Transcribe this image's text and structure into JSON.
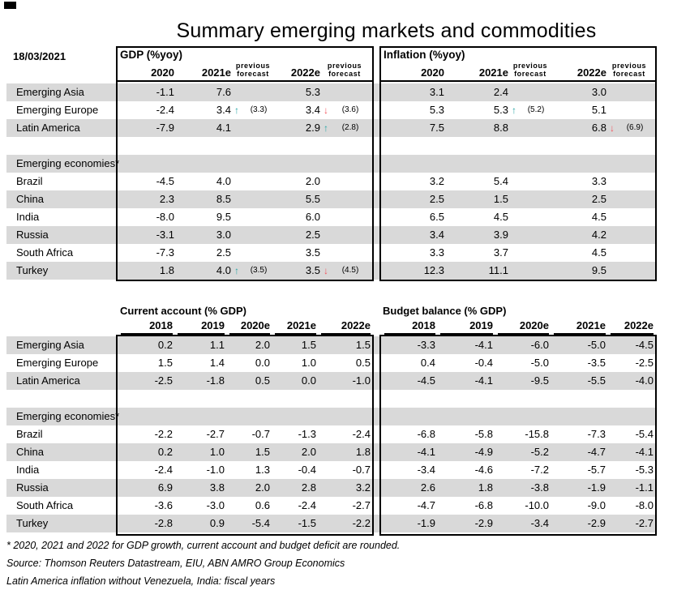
{
  "title": "Summary emerging markets and commodities",
  "date": "18/03/2021",
  "colors": {
    "stripe": "#d9d9d9",
    "arrow_up": "#2aa7a7",
    "arrow_down": "#f2555f",
    "border": "#000000"
  },
  "top": {
    "gdp": {
      "title": "GDP (%yoy)",
      "years": [
        "2020",
        "2021e",
        "2022e"
      ],
      "prev_label": [
        "previous",
        "forecast"
      ]
    },
    "inflation": {
      "title": "Inflation (%yoy)",
      "years": [
        "2020",
        "2021e",
        "2022e"
      ],
      "prev_label": [
        "previous",
        "forecast"
      ]
    },
    "rows": [
      {
        "type": "region",
        "label": "Emerging Asia",
        "gdp": [
          "-1.1",
          "7.6",
          "5.3"
        ],
        "inf": [
          "3.1",
          "2.4",
          "3.0"
        ]
      },
      {
        "type": "region",
        "label": "Emerging Europe",
        "gdp": [
          "-2.4",
          "3.4",
          "3.4"
        ],
        "gdp_up": {
          "1": "↑"
        },
        "gdp_dn": {
          "2": "↓"
        },
        "gdp_prev": {
          "1": "(3.3)",
          "2": "(3.6)"
        },
        "inf": [
          "5.3",
          "5.3",
          "5.1"
        ],
        "inf_up": {
          "1": "↑"
        },
        "inf_prev": {
          "1": "(5.2)"
        }
      },
      {
        "type": "region",
        "label": "Latin America",
        "gdp": [
          "-7.9",
          "4.1",
          "2.9"
        ],
        "gdp_up": {
          "2": "↑"
        },
        "gdp_prev": {
          "2": "(2.8)"
        },
        "inf": [
          "7.5",
          "8.8",
          "6.8"
        ],
        "inf_dn": {
          "2": "↓"
        },
        "inf_prev": {
          "2": "(6.9)"
        }
      },
      {
        "type": "blank"
      },
      {
        "type": "band",
        "label": "Emerging economies*"
      },
      {
        "type": "economy",
        "label": "Brazil",
        "gdp": [
          "-4.5",
          "4.0",
          "2.0"
        ],
        "inf": [
          "3.2",
          "5.4",
          "3.3"
        ]
      },
      {
        "type": "economy",
        "label": "China",
        "gdp": [
          "2.3",
          "8.5",
          "5.5"
        ],
        "inf": [
          "2.5",
          "1.5",
          "2.5"
        ]
      },
      {
        "type": "economy",
        "label": "India",
        "gdp": [
          "-8.0",
          "9.5",
          "6.0"
        ],
        "inf": [
          "6.5",
          "4.5",
          "4.5"
        ]
      },
      {
        "type": "economy",
        "label": "Russia",
        "gdp": [
          "-3.1",
          "3.0",
          "2.5"
        ],
        "inf": [
          "3.4",
          "3.9",
          "4.2"
        ]
      },
      {
        "type": "economy",
        "label": "South Africa",
        "gdp": [
          "-7.3",
          "2.5",
          "3.5"
        ],
        "inf": [
          "3.3",
          "3.7",
          "4.5"
        ]
      },
      {
        "type": "economy",
        "label": "Turkey",
        "gdp": [
          "1.8",
          "4.0",
          "3.5"
        ],
        "gdp_up": {
          "1": "↑"
        },
        "gdp_dn": {
          "2": "↓"
        },
        "gdp_prev": {
          "1": "(3.5)",
          "2": "(4.5)"
        },
        "inf": [
          "12.3",
          "11.1",
          "9.5"
        ]
      }
    ]
  },
  "bottom": {
    "ca": {
      "title": "Current account (% GDP)",
      "years": [
        "2018",
        "2019",
        "2020e",
        "2021e",
        "2022e"
      ]
    },
    "bb": {
      "title": "Budget balance (% GDP)",
      "years": [
        "2018",
        "2019",
        "2020e",
        "2021e",
        "2022e"
      ]
    },
    "rows": [
      {
        "type": "region",
        "label": "Emerging Asia",
        "ca": [
          "0.2",
          "1.1",
          "2.0",
          "1.5",
          "1.5"
        ],
        "bb": [
          "-3.3",
          "-4.1",
          "-6.0",
          "-5.0",
          "-4.5"
        ]
      },
      {
        "type": "region",
        "label": "Emerging Europe",
        "ca": [
          "1.5",
          "1.4",
          "0.0",
          "1.0",
          "0.5"
        ],
        "bb": [
          "0.4",
          "-0.4",
          "-5.0",
          "-3.5",
          "-2.5"
        ]
      },
      {
        "type": "region",
        "label": "Latin America",
        "ca": [
          "-2.5",
          "-1.8",
          "0.5",
          "0.0",
          "-1.0"
        ],
        "bb": [
          "-4.5",
          "-4.1",
          "-9.5",
          "-5.5",
          "-4.0"
        ]
      },
      {
        "type": "blank"
      },
      {
        "type": "band",
        "label": "Emerging economies*"
      },
      {
        "type": "economy",
        "label": "Brazil",
        "ca": [
          "-2.2",
          "-2.7",
          "-0.7",
          "-1.3",
          "-2.4"
        ],
        "bb": [
          "-6.8",
          "-5.8",
          "-15.8",
          "-7.3",
          "-5.4"
        ]
      },
      {
        "type": "economy",
        "label": "China",
        "ca": [
          "0.2",
          "1.0",
          "1.5",
          "2.0",
          "1.8"
        ],
        "bb": [
          "-4.1",
          "-4.9",
          "-5.2",
          "-4.7",
          "-4.1"
        ]
      },
      {
        "type": "economy",
        "label": "India",
        "ca": [
          "-2.4",
          "-1.0",
          "1.3",
          "-0.4",
          "-0.7"
        ],
        "bb": [
          "-3.4",
          "-4.6",
          "-7.2",
          "-5.7",
          "-5.3"
        ]
      },
      {
        "type": "economy",
        "label": "Russia",
        "ca": [
          "6.9",
          "3.8",
          "2.0",
          "2.8",
          "3.2"
        ],
        "bb": [
          "2.6",
          "1.8",
          "-3.8",
          "-1.9",
          "-1.1"
        ]
      },
      {
        "type": "economy",
        "label": "South Africa",
        "ca": [
          "-3.6",
          "-3.0",
          "0.6",
          "-2.4",
          "-2.7"
        ],
        "bb": [
          "-4.7",
          "-6.8",
          "-10.0",
          "-9.0",
          "-8.0"
        ]
      },
      {
        "type": "economy",
        "label": "Turkey",
        "ca": [
          "-2.8",
          "0.9",
          "-5.4",
          "-1.5",
          "-2.2"
        ],
        "bb": [
          "-1.9",
          "-2.9",
          "-3.4",
          "-2.9",
          "-2.7"
        ]
      }
    ]
  },
  "footnotes": [
    "* 2020, 2021 and 2022 for GDP growth, current account and budget deficit are rounded.",
    "Source: Thomson Reuters Datastream, EIU, ABN AMRO Group Economics",
    "Latin America inflation without Venezuela, India: fiscal years"
  ]
}
